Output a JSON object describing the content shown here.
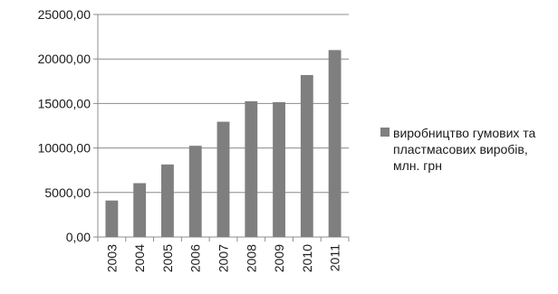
{
  "chart_data": {
    "type": "bar",
    "categories": [
      "2003",
      "2004",
      "2005",
      "2006",
      "2007",
      "2008",
      "2009",
      "2010",
      "2011"
    ],
    "series": [
      {
        "name": "виробництво гумових та пластмасових виробів, млн. грн",
        "values": [
          4100,
          6050,
          8150,
          10250,
          12950,
          15250,
          15150,
          18200,
          21000
        ],
        "color": "#7f7f7f"
      }
    ],
    "yticks": [
      "0,00",
      "5000,00",
      "10000,00",
      "15000,00",
      "20000,00",
      "25000,00"
    ],
    "ylim": [
      0,
      25000
    ],
    "grid": true,
    "legend_position": "right",
    "xlabel": "",
    "ylabel": "",
    "title": ""
  }
}
